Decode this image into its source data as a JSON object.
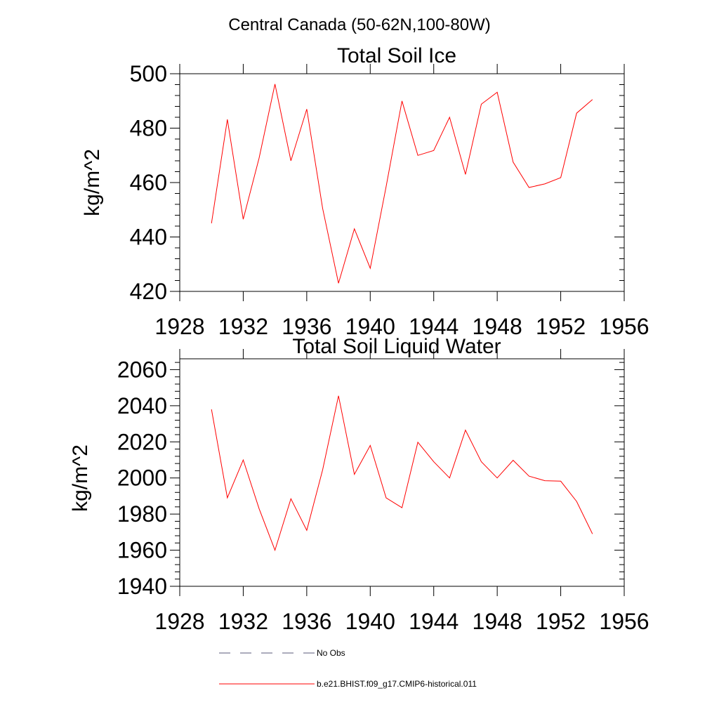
{
  "figure": {
    "suptitle": "Central Canada (50-62N,100-80W)"
  },
  "legend": [
    {
      "label": "No Obs",
      "color": "#5a5a7a",
      "dash": "dashed"
    },
    {
      "label": "b.e21.BHIST.f09_g17.CMIP6-historical.011",
      "color": "#ff0000",
      "dash": "solid"
    }
  ],
  "chart_data": [
    {
      "type": "line",
      "title": "Total Soil Ice",
      "xlabel": "",
      "ylabel": "kg/m^2",
      "xlim": [
        1928,
        1956
      ],
      "ylim": [
        420,
        500
      ],
      "xticks": [
        1928,
        1932,
        1936,
        1940,
        1944,
        1948,
        1952,
        1956
      ],
      "yticks": [
        420,
        440,
        460,
        480,
        500
      ],
      "grid": false,
      "x": [
        1930,
        1931,
        1932,
        1933,
        1934,
        1935,
        1936,
        1937,
        1938,
        1939,
        1940,
        1941,
        1942,
        1943,
        1944,
        1945,
        1946,
        1947,
        1948,
        1949,
        1950,
        1951,
        1952,
        1953,
        1954
      ],
      "series": [
        {
          "name": "b.e21.BHIST.f09_g17.CMIP6-historical.011",
          "color": "#ff0000",
          "values": [
            445.0,
            483.2,
            446.5,
            469.0,
            496.2,
            468.0,
            487.0,
            450.5,
            423.0,
            443.0,
            428.5,
            458.5,
            490.0,
            470.0,
            471.8,
            484.0,
            463.0,
            488.8,
            493.2,
            467.5,
            458.2,
            459.5,
            461.8,
            485.5,
            490.5
          ]
        }
      ]
    },
    {
      "type": "line",
      "title": "Total Soil Liquid Water",
      "xlabel": "",
      "ylabel": "kg/m^2",
      "xlim": [
        1928,
        1956
      ],
      "ylim": [
        1940,
        2066
      ],
      "xticks": [
        1928,
        1932,
        1936,
        1940,
        1944,
        1948,
        1952,
        1956
      ],
      "yticks": [
        1940,
        1960,
        1980,
        2000,
        2020,
        2040,
        2060
      ],
      "grid": false,
      "x": [
        1930,
        1931,
        1932,
        1933,
        1934,
        1935,
        1936,
        1937,
        1938,
        1939,
        1940,
        1941,
        1942,
        1943,
        1944,
        1945,
        1946,
        1947,
        1948,
        1949,
        1950,
        1951,
        1952,
        1953,
        1954
      ],
      "series": [
        {
          "name": "b.e21.BHIST.f09_g17.CMIP6-historical.011",
          "color": "#ff0000",
          "values": [
            2038.0,
            1989.0,
            2010.0,
            1983.0,
            1960.0,
            1988.5,
            1971.0,
            2004.5,
            2045.5,
            2002.0,
            2018.0,
            1989.0,
            1983.5,
            2019.8,
            2009.0,
            2000.0,
            2026.5,
            2009.0,
            2000.0,
            2009.8,
            2001.0,
            1998.5,
            1998.2,
            1987.0,
            1969.0
          ]
        }
      ]
    }
  ]
}
